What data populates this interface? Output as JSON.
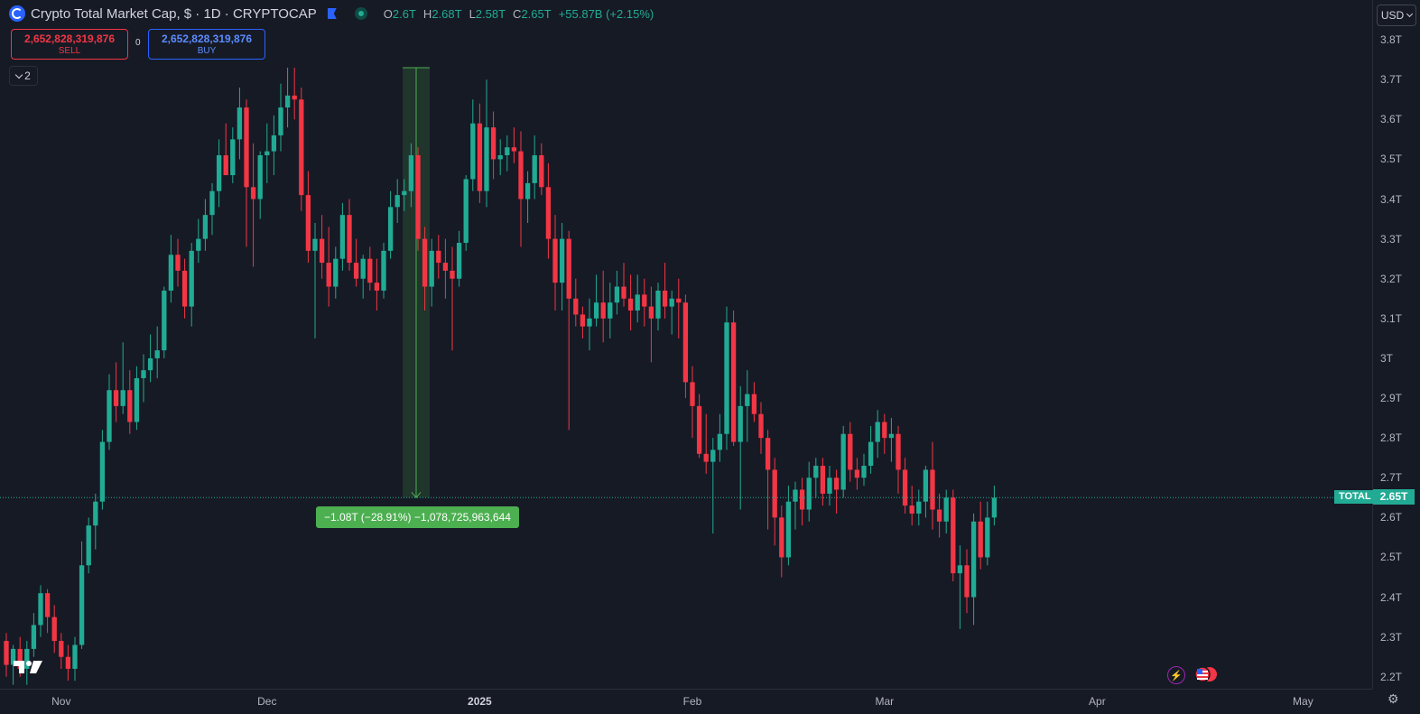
{
  "header": {
    "title": "Crypto Total Market Cap, $ · 1D · CRYPTOCAP",
    "ohlc": {
      "o_key": "O",
      "o": "2.6T",
      "h_key": "H",
      "h": "2.68T",
      "l_key": "L",
      "l": "2.58T",
      "c_key": "C",
      "c": "2.65T",
      "change": "+55.87B (+2.15%)"
    }
  },
  "trade": {
    "sell_price": "2,652,828,319,876",
    "sell_label": "SELL",
    "buy_price": "2,652,828,319,876",
    "buy_label": "BUY",
    "spread": "0"
  },
  "indicators_collapsed_count": "2",
  "currency": "USD",
  "price_axis": {
    "ticks": [
      "3.8T",
      "3.7T",
      "3.6T",
      "3.5T",
      "3.4T",
      "3.3T",
      "3.2T",
      "3.1T",
      "3T",
      "2.9T",
      "2.8T",
      "2.7T",
      "2.6T",
      "2.5T",
      "2.4T",
      "2.3T",
      "2.2T"
    ]
  },
  "time_axis": {
    "labels": [
      "Nov",
      "Dec",
      "2025",
      "Feb",
      "Mar",
      "Apr",
      "May"
    ]
  },
  "current": {
    "symbol_label": "TOTAL",
    "price_label": "2.65T",
    "value": 2.65
  },
  "measure": {
    "label": "−1.08T (−28.91%) −1,078,725,963,644",
    "from": 3.73,
    "to": 2.65
  },
  "colors": {
    "up": "#22ab94",
    "down": "#f23645",
    "background": "#161a25",
    "measure": "#4caf50"
  },
  "chart_data": {
    "type": "candlestick",
    "x_unit": "day",
    "x_range": [
      "2024-10-24",
      "2025-05-12"
    ],
    "ylim": [
      2.17,
      3.9
    ],
    "y_unit": "T USD",
    "series": [
      {
        "values": [
          [
            2.29,
            2.31,
            2.2,
            2.23
          ],
          [
            2.23,
            2.28,
            2.18,
            2.27
          ],
          [
            2.27,
            2.3,
            2.2,
            2.22
          ],
          [
            2.22,
            2.29,
            2.18,
            2.27
          ],
          [
            2.27,
            2.36,
            2.25,
            2.33
          ],
          [
            2.33,
            2.43,
            2.3,
            2.41
          ],
          [
            2.41,
            2.42,
            2.31,
            2.35
          ],
          [
            2.35,
            2.38,
            2.26,
            2.29
          ],
          [
            2.29,
            2.31,
            2.22,
            2.25
          ],
          [
            2.25,
            2.28,
            2.19,
            2.22
          ],
          [
            2.22,
            2.3,
            2.19,
            2.28
          ],
          [
            2.28,
            2.54,
            2.27,
            2.48
          ],
          [
            2.48,
            2.6,
            2.46,
            2.58
          ],
          [
            2.58,
            2.66,
            2.52,
            2.64
          ],
          [
            2.64,
            2.82,
            2.62,
            2.79
          ],
          [
            2.79,
            2.96,
            2.77,
            2.92
          ],
          [
            2.92,
            2.99,
            2.84,
            2.88
          ],
          [
            2.88,
            3.04,
            2.86,
            2.92
          ],
          [
            2.92,
            2.97,
            2.81,
            2.84
          ],
          [
            2.84,
            2.98,
            2.82,
            2.95
          ],
          [
            2.95,
            3.01,
            2.89,
            2.97
          ],
          [
            2.97,
            3.06,
            2.94,
            3.0
          ],
          [
            3.0,
            3.08,
            2.95,
            3.02
          ],
          [
            3.02,
            3.18,
            3.0,
            3.17
          ],
          [
            3.17,
            3.31,
            3.14,
            3.26
          ],
          [
            3.26,
            3.3,
            3.18,
            3.22
          ],
          [
            3.22,
            3.25,
            3.1,
            3.13
          ],
          [
            3.13,
            3.29,
            3.08,
            3.27
          ],
          [
            3.27,
            3.35,
            3.24,
            3.3
          ],
          [
            3.3,
            3.4,
            3.27,
            3.36
          ],
          [
            3.36,
            3.44,
            3.31,
            3.42
          ],
          [
            3.42,
            3.55,
            3.38,
            3.51
          ],
          [
            3.51,
            3.59,
            3.46,
            3.46
          ],
          [
            3.46,
            3.58,
            3.44,
            3.55
          ],
          [
            3.55,
            3.68,
            3.5,
            3.63
          ],
          [
            3.63,
            3.65,
            3.28,
            3.43
          ],
          [
            3.43,
            3.54,
            3.23,
            3.4
          ],
          [
            3.4,
            3.52,
            3.35,
            3.51
          ],
          [
            3.51,
            3.59,
            3.44,
            3.52
          ],
          [
            3.52,
            3.61,
            3.46,
            3.56
          ],
          [
            3.56,
            3.69,
            3.52,
            3.63
          ],
          [
            3.63,
            3.73,
            3.58,
            3.66
          ],
          [
            3.66,
            3.73,
            3.6,
            3.65
          ],
          [
            3.65,
            3.68,
            3.37,
            3.41
          ],
          [
            3.41,
            3.47,
            3.24,
            3.27
          ],
          [
            3.27,
            3.34,
            3.05,
            3.3
          ],
          [
            3.3,
            3.36,
            3.2,
            3.24
          ],
          [
            3.24,
            3.33,
            3.13,
            3.18
          ],
          [
            3.18,
            3.28,
            3.15,
            3.25
          ],
          [
            3.25,
            3.39,
            3.22,
            3.36
          ],
          [
            3.36,
            3.4,
            3.22,
            3.24
          ],
          [
            3.24,
            3.3,
            3.18,
            3.2
          ],
          [
            3.2,
            3.26,
            3.15,
            3.25
          ],
          [
            3.25,
            3.28,
            3.17,
            3.19
          ],
          [
            3.19,
            3.25,
            3.12,
            3.17
          ],
          [
            3.17,
            3.29,
            3.15,
            3.27
          ],
          [
            3.27,
            3.42,
            3.25,
            3.38
          ],
          [
            3.38,
            3.45,
            3.34,
            3.41
          ],
          [
            3.41,
            3.45,
            3.37,
            3.42
          ],
          [
            3.42,
            3.54,
            3.38,
            3.51
          ],
          [
            3.51,
            3.53,
            3.27,
            3.3
          ],
          [
            3.3,
            3.33,
            3.12,
            3.18
          ],
          [
            3.18,
            3.3,
            3.13,
            3.27
          ],
          [
            3.27,
            3.31,
            3.2,
            3.24
          ],
          [
            3.24,
            3.3,
            3.15,
            3.22
          ],
          [
            3.22,
            3.28,
            3.02,
            3.2
          ],
          [
            3.2,
            3.32,
            3.18,
            3.29
          ],
          [
            3.29,
            3.46,
            3.27,
            3.45
          ],
          [
            3.45,
            3.65,
            3.42,
            3.59
          ],
          [
            3.59,
            3.64,
            3.39,
            3.42
          ],
          [
            3.42,
            3.7,
            3.38,
            3.58
          ],
          [
            3.58,
            3.62,
            3.45,
            3.5
          ],
          [
            3.5,
            3.55,
            3.46,
            3.51
          ],
          [
            3.51,
            3.56,
            3.47,
            3.53
          ],
          [
            3.53,
            3.58,
            3.49,
            3.52
          ],
          [
            3.52,
            3.57,
            3.28,
            3.4
          ],
          [
            3.4,
            3.47,
            3.34,
            3.44
          ],
          [
            3.44,
            3.56,
            3.4,
            3.51
          ],
          [
            3.51,
            3.54,
            3.41,
            3.43
          ],
          [
            3.43,
            3.49,
            3.25,
            3.3
          ],
          [
            3.3,
            3.36,
            3.12,
            3.19
          ],
          [
            3.19,
            3.34,
            3.12,
            3.3
          ],
          [
            3.3,
            3.32,
            2.82,
            3.15
          ],
          [
            3.15,
            3.2,
            3.08,
            3.11
          ],
          [
            3.11,
            3.13,
            3.05,
            3.08
          ],
          [
            3.08,
            3.15,
            3.02,
            3.1
          ],
          [
            3.1,
            3.21,
            3.08,
            3.14
          ],
          [
            3.14,
            3.22,
            3.04,
            3.1
          ],
          [
            3.1,
            3.19,
            3.05,
            3.14
          ],
          [
            3.14,
            3.22,
            3.11,
            3.18
          ],
          [
            3.18,
            3.24,
            3.13,
            3.15
          ],
          [
            3.15,
            3.21,
            3.07,
            3.12
          ],
          [
            3.12,
            3.21,
            3.09,
            3.16
          ],
          [
            3.16,
            3.2,
            3.08,
            3.13
          ],
          [
            3.13,
            3.18,
            2.99,
            3.1
          ],
          [
            3.1,
            3.19,
            3.07,
            3.17
          ],
          [
            3.17,
            3.24,
            3.1,
            3.13
          ],
          [
            3.13,
            3.17,
            3.06,
            3.15
          ],
          [
            3.15,
            3.2,
            3.05,
            3.14
          ],
          [
            3.14,
            3.16,
            2.9,
            2.94
          ],
          [
            2.94,
            2.98,
            2.8,
            2.88
          ],
          [
            2.88,
            2.91,
            2.75,
            2.76
          ],
          [
            2.76,
            2.86,
            2.71,
            2.74
          ],
          [
            2.74,
            2.8,
            2.56,
            2.77
          ],
          [
            2.77,
            2.86,
            2.74,
            2.81
          ],
          [
            2.81,
            3.13,
            2.77,
            3.09
          ],
          [
            3.09,
            3.12,
            2.78,
            2.79
          ],
          [
            2.79,
            2.93,
            2.62,
            2.88
          ],
          [
            2.88,
            2.97,
            2.79,
            2.91
          ],
          [
            2.91,
            2.94,
            2.84,
            2.86
          ],
          [
            2.86,
            2.89,
            2.76,
            2.8
          ],
          [
            2.8,
            2.82,
            2.57,
            2.72
          ],
          [
            2.72,
            2.75,
            2.53,
            2.6
          ],
          [
            2.6,
            2.63,
            2.45,
            2.5
          ],
          [
            2.5,
            2.68,
            2.48,
            2.64
          ],
          [
            2.64,
            2.69,
            2.57,
            2.67
          ],
          [
            2.67,
            2.7,
            2.58,
            2.62
          ],
          [
            2.62,
            2.74,
            2.59,
            2.7
          ],
          [
            2.7,
            2.75,
            2.65,
            2.73
          ],
          [
            2.73,
            2.75,
            2.63,
            2.66
          ],
          [
            2.66,
            2.73,
            2.63,
            2.7
          ],
          [
            2.7,
            2.72,
            2.61,
            2.67
          ],
          [
            2.67,
            2.83,
            2.65,
            2.81
          ],
          [
            2.81,
            2.84,
            2.69,
            2.72
          ],
          [
            2.72,
            2.75,
            2.67,
            2.7
          ],
          [
            2.7,
            2.76,
            2.68,
            2.73
          ],
          [
            2.73,
            2.83,
            2.71,
            2.79
          ],
          [
            2.79,
            2.87,
            2.75,
            2.84
          ],
          [
            2.84,
            2.86,
            2.76,
            2.8
          ],
          [
            2.8,
            2.85,
            2.74,
            2.81
          ],
          [
            2.81,
            2.83,
            2.66,
            2.72
          ],
          [
            2.72,
            2.75,
            2.61,
            2.63
          ],
          [
            2.63,
            2.68,
            2.58,
            2.61
          ],
          [
            2.61,
            2.67,
            2.58,
            2.64
          ],
          [
            2.64,
            2.73,
            2.6,
            2.72
          ],
          [
            2.72,
            2.79,
            2.57,
            2.62
          ],
          [
            2.62,
            2.66,
            2.55,
            2.59
          ],
          [
            2.59,
            2.67,
            2.56,
            2.65
          ],
          [
            2.65,
            2.67,
            2.44,
            2.46
          ],
          [
            2.46,
            2.53,
            2.32,
            2.48
          ],
          [
            2.48,
            2.52,
            2.36,
            2.4
          ],
          [
            2.4,
            2.61,
            2.33,
            2.59
          ],
          [
            2.59,
            2.64,
            2.47,
            2.5
          ],
          [
            2.5,
            2.64,
            2.48,
            2.6
          ],
          [
            2.6,
            2.68,
            2.58,
            2.65
          ]
        ]
      }
    ]
  }
}
